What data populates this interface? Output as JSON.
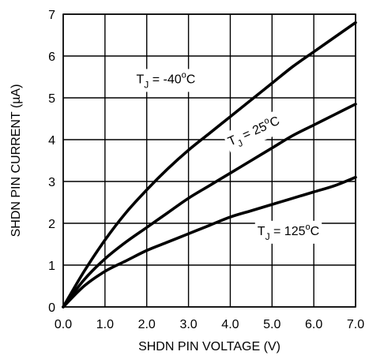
{
  "chart_data": {
    "type": "line",
    "xlabel": "SHDN PIN VOLTAGE (V)",
    "ylabel": "SHDN PIN CURRENT (µA)",
    "xlim": [
      0,
      7
    ],
    "ylim": [
      0,
      7
    ],
    "x_ticks": [
      "0.0",
      "1.0",
      "2.0",
      "3.0",
      "4.0",
      "5.0",
      "6.0",
      "7.0"
    ],
    "y_ticks": [
      "0",
      "1",
      "2",
      "3",
      "4",
      "5",
      "6",
      "7"
    ],
    "grid": true,
    "series": [
      {
        "name": "TJ = -40°C",
        "label_parts": {
          "t": "T",
          "sub": "J",
          "rest": " = -40",
          "sup": "o",
          "unit": "C"
        },
        "x": [
          0,
          0.5,
          1.0,
          1.5,
          2.0,
          2.5,
          3.0,
          3.5,
          4.0,
          4.5,
          5.0,
          5.5,
          6.0,
          6.5,
          7.0
        ],
        "y": [
          0,
          0.85,
          1.6,
          2.25,
          2.8,
          3.3,
          3.75,
          4.15,
          4.55,
          4.95,
          5.35,
          5.75,
          6.1,
          6.45,
          6.8
        ]
      },
      {
        "name": "TJ = 25°C",
        "label_parts": {
          "t": "T",
          "sub": "J",
          "rest": " = 25",
          "sup": "o",
          "unit": "C"
        },
        "x": [
          0,
          0.5,
          1.0,
          1.5,
          2.0,
          2.5,
          3.0,
          3.5,
          4.0,
          4.5,
          5.0,
          5.5,
          6.0,
          6.5,
          7.0
        ],
        "y": [
          0,
          0.65,
          1.15,
          1.55,
          1.9,
          2.25,
          2.6,
          2.9,
          3.2,
          3.5,
          3.8,
          4.1,
          4.35,
          4.6,
          4.85
        ]
      },
      {
        "name": "TJ = 125°C",
        "label_parts": {
          "t": "T",
          "sub": "J",
          "rest": " = 125",
          "sup": "o",
          "unit": "C"
        },
        "x": [
          0,
          0.5,
          1.0,
          1.5,
          2.0,
          2.5,
          3.0,
          3.5,
          4.0,
          4.5,
          5.0,
          5.5,
          6.0,
          6.5,
          7.0
        ],
        "y": [
          0,
          0.5,
          0.85,
          1.1,
          1.35,
          1.55,
          1.75,
          1.95,
          2.15,
          2.3,
          2.45,
          2.6,
          2.75,
          2.9,
          3.1
        ]
      }
    ]
  }
}
